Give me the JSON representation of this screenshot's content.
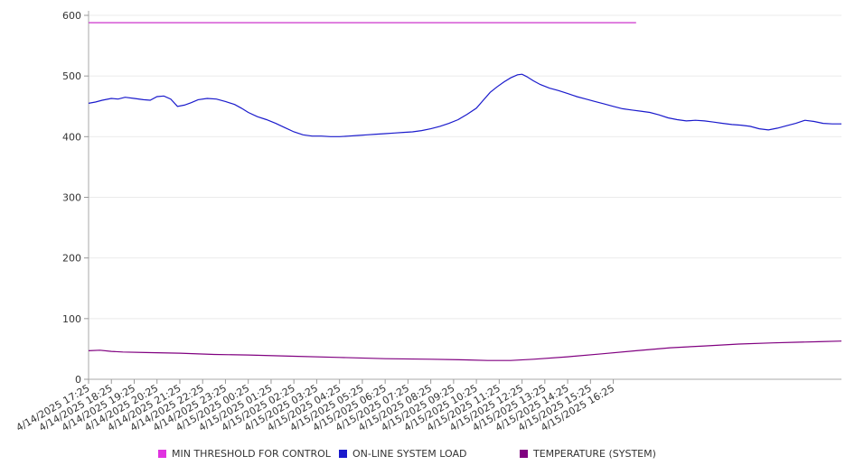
{
  "chart_data": {
    "type": "line",
    "x_categories": [
      "4/14/2025 17:25",
      "4/14/2025 18:25",
      "4/14/2025 19:25",
      "4/14/2025 20:25",
      "4/14/2025 21:25",
      "4/14/2025 22:25",
      "4/14/2025 23:25",
      "4/15/2025 00:25",
      "4/15/2025 01:25",
      "4/15/2025 02:25",
      "4/15/2025 03:25",
      "4/15/2025 04:25",
      "4/15/2025 05:25",
      "4/15/2025 06:25",
      "4/15/2025 07:25",
      "4/15/2025 08:25",
      "4/15/2025 09:25",
      "4/15/2025 10:25",
      "4/15/2025 11:25",
      "4/15/2025 12:25",
      "4/15/2025 13:25",
      "4/15/2025 14:25",
      "4/15/2025 15:25",
      "4/15/2025 16:25"
    ],
    "y_ticks": [
      0,
      100,
      200,
      300,
      400,
      500,
      600
    ],
    "ylim": [
      0,
      600
    ],
    "grid": "horizontal",
    "legend_position": "bottom",
    "series": [
      {
        "name": "MIN THRESHOLD FOR CONTROL",
        "color": "#cc33cc",
        "points": [
          [
            0,
            588
          ],
          [
            24,
            588
          ]
        ]
      },
      {
        "name": "ON-LINE SYSTEM LOAD",
        "color": "#1a1acc",
        "points": [
          [
            0,
            455
          ],
          [
            0.3,
            457
          ],
          [
            0.6,
            460
          ],
          [
            1.0,
            463
          ],
          [
            1.3,
            462
          ],
          [
            1.6,
            465
          ],
          [
            2.0,
            463
          ],
          [
            2.4,
            461
          ],
          [
            2.7,
            460
          ],
          [
            3.0,
            466
          ],
          [
            3.3,
            467
          ],
          [
            3.6,
            462
          ],
          [
            3.9,
            450
          ],
          [
            4.2,
            452
          ],
          [
            4.5,
            456
          ],
          [
            4.8,
            461
          ],
          [
            5.2,
            463
          ],
          [
            5.6,
            462
          ],
          [
            6.0,
            458
          ],
          [
            6.4,
            453
          ],
          [
            6.7,
            447
          ],
          [
            7.0,
            440
          ],
          [
            7.4,
            433
          ],
          [
            7.8,
            428
          ],
          [
            8.2,
            422
          ],
          [
            8.6,
            415
          ],
          [
            9.0,
            408
          ],
          [
            9.4,
            403
          ],
          [
            9.8,
            401
          ],
          [
            10.2,
            401
          ],
          [
            10.6,
            400
          ],
          [
            11.0,
            400
          ],
          [
            11.4,
            401
          ],
          [
            11.8,
            402
          ],
          [
            12.2,
            403
          ],
          [
            12.6,
            404
          ],
          [
            13.0,
            405
          ],
          [
            13.4,
            406
          ],
          [
            13.8,
            407
          ],
          [
            14.2,
            408
          ],
          [
            14.6,
            410
          ],
          [
            15.0,
            413
          ],
          [
            15.4,
            417
          ],
          [
            15.8,
            422
          ],
          [
            16.2,
            428
          ],
          [
            16.6,
            437
          ],
          [
            17.0,
            447
          ],
          [
            17.3,
            460
          ],
          [
            17.6,
            473
          ],
          [
            17.9,
            482
          ],
          [
            18.2,
            490
          ],
          [
            18.5,
            497
          ],
          [
            18.8,
            502
          ],
          [
            19.0,
            503
          ],
          [
            19.2,
            499
          ],
          [
            19.5,
            492
          ],
          [
            19.8,
            486
          ],
          [
            20.2,
            480
          ],
          [
            20.6,
            476
          ],
          [
            21.0,
            471
          ],
          [
            21.4,
            466
          ],
          [
            21.8,
            462
          ],
          [
            22.2,
            458
          ],
          [
            22.6,
            454
          ],
          [
            23.0,
            450
          ],
          [
            23.4,
            446
          ],
          [
            23.8,
            444
          ],
          [
            24.2,
            442
          ],
          [
            24.6,
            440
          ],
          [
            25.0,
            436
          ],
          [
            25.4,
            431
          ],
          [
            25.8,
            428
          ],
          [
            26.2,
            426
          ],
          [
            26.6,
            427
          ],
          [
            27.0,
            426
          ],
          [
            27.4,
            424
          ],
          [
            27.8,
            422
          ],
          [
            28.2,
            420
          ],
          [
            28.6,
            419
          ],
          [
            29.0,
            417
          ],
          [
            29.4,
            413
          ],
          [
            29.8,
            411
          ],
          [
            30.2,
            414
          ],
          [
            30.6,
            418
          ],
          [
            31.0,
            422
          ],
          [
            31.4,
            427
          ],
          [
            31.8,
            425
          ],
          [
            32.2,
            422
          ],
          [
            32.6,
            421
          ],
          [
            33.0,
            421
          ]
        ]
      },
      {
        "name": "TEMPERATURE (SYSTEM)",
        "color": "#800080",
        "points": [
          [
            0,
            47
          ],
          [
            0.5,
            48
          ],
          [
            1.0,
            46
          ],
          [
            1.5,
            45
          ],
          [
            2.5,
            44
          ],
          [
            4.0,
            43
          ],
          [
            5.5,
            41
          ],
          [
            7.0,
            40
          ],
          [
            9.0,
            38
          ],
          [
            11.0,
            36
          ],
          [
            13.0,
            34
          ],
          [
            15.0,
            33
          ],
          [
            16.5,
            32
          ],
          [
            17.5,
            31
          ],
          [
            18.5,
            31
          ],
          [
            19.5,
            33
          ],
          [
            21.0,
            37
          ],
          [
            22.5,
            42
          ],
          [
            24.0,
            47
          ],
          [
            25.5,
            52
          ],
          [
            27.0,
            55
          ],
          [
            28.5,
            58
          ],
          [
            30.0,
            60
          ],
          [
            31.0,
            61
          ],
          [
            32.0,
            62
          ],
          [
            33.0,
            63
          ]
        ]
      }
    ]
  }
}
